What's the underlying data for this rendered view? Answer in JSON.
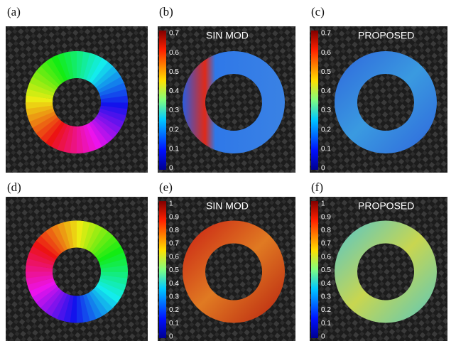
{
  "panels": [
    {
      "label": "(a)"
    },
    {
      "label": "(b)",
      "title": "SIN MOD",
      "colorbar_ticks": [
        "0",
        "0.1",
        "0.2",
        "0.3",
        "0.4",
        "0.5",
        "0.6",
        "0.7"
      ]
    },
    {
      "label": "(c)",
      "title": "PROPOSED",
      "colorbar_ticks": [
        "0",
        "0.1",
        "0.2",
        "0.3",
        "0.4",
        "0.5",
        "0.6",
        "0.7"
      ]
    },
    {
      "label": "(d)"
    },
    {
      "label": "(e)",
      "title": "SIN MOD",
      "colorbar_ticks": [
        "0",
        "0.1",
        "0.2",
        "0.3",
        "0.4",
        "0.5",
        "0.6",
        "0.7",
        "0.8",
        "0.9",
        "1"
      ]
    },
    {
      "label": "(f)",
      "title": "PROPOSED",
      "colorbar_ticks": [
        "0",
        "0.1",
        "0.2",
        "0.3",
        "0.4",
        "0.5",
        "0.6",
        "0.7",
        "0.8",
        "0.9",
        "1"
      ]
    }
  ]
}
